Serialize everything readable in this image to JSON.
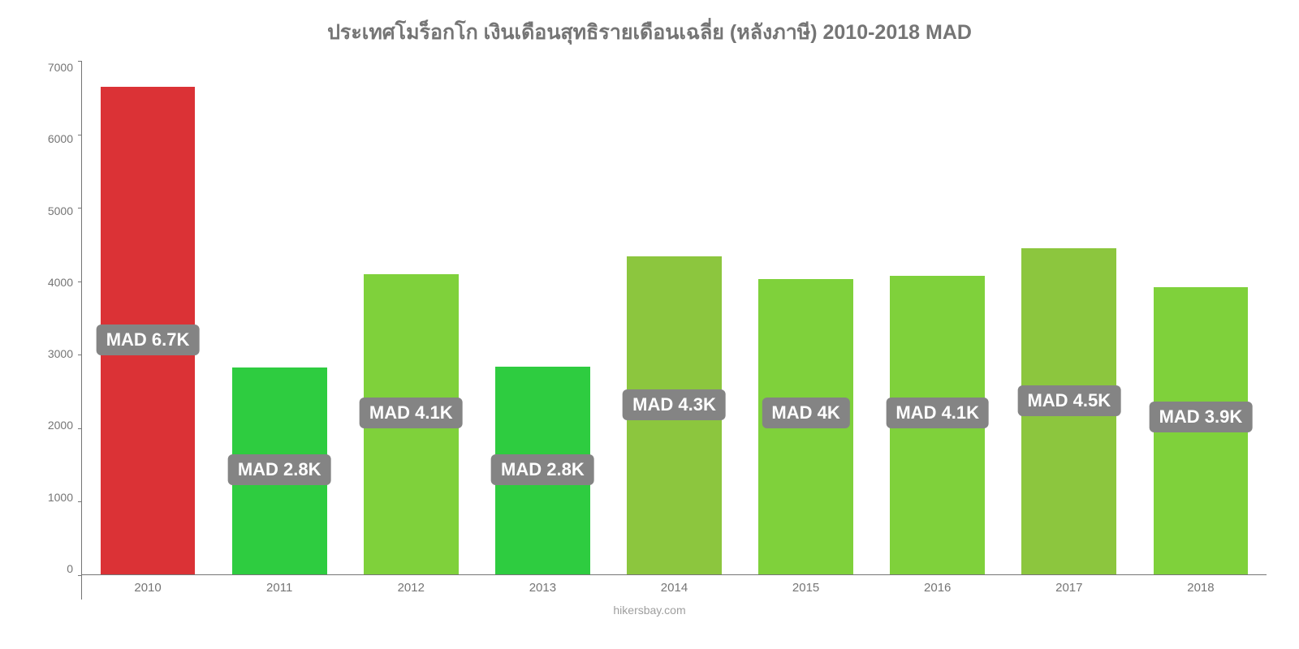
{
  "chart": {
    "type": "bar",
    "title": "ประเทศโมร็อกโก เงินเดือนสุทธิรายเดือนเฉลี่ย (หลังภาษี) 2010-2018 MAD",
    "title_fontsize": 25,
    "title_color": "#757575",
    "background_color": "#ffffff",
    "axis_color": "#757575",
    "tick_color": "#757575",
    "tick_fontsize": 14,
    "x_tick_fontsize": 15,
    "categories": [
      "2010",
      "2011",
      "2012",
      "2013",
      "2014",
      "2015",
      "2016",
      "2017",
      "2018"
    ],
    "values": [
      6650,
      2820,
      4090,
      2830,
      4330,
      4030,
      4070,
      4450,
      3920
    ],
    "value_labels": [
      "MAD 6.7K",
      "MAD 2.8K",
      "MAD 4.1K",
      "MAD 2.8K",
      "MAD 4.3K",
      "MAD 4K",
      "MAD 4.1K",
      "MAD 4.5K",
      "MAD 3.9K"
    ],
    "bar_colors": [
      "#db3236",
      "#2ecc40",
      "#7fd13b",
      "#2ecc40",
      "#8cc63e",
      "#7fd13b",
      "#7fd13b",
      "#8cc63e",
      "#7fd13b"
    ],
    "label_y_offsets": [
      270,
      110,
      180,
      110,
      190,
      180,
      180,
      195,
      175
    ],
    "ylim": [
      0,
      7000
    ],
    "ytick_step": 1000,
    "yticks": [
      "7000",
      "6000",
      "5000",
      "4000",
      "3000",
      "2000",
      "1000",
      "0"
    ],
    "bar_width": 0.72,
    "label_bg": "#848484",
    "label_color": "#ffffff",
    "label_fontsize": 22,
    "footer": "hikersbay.com",
    "footer_color": "#9e9e9e"
  }
}
